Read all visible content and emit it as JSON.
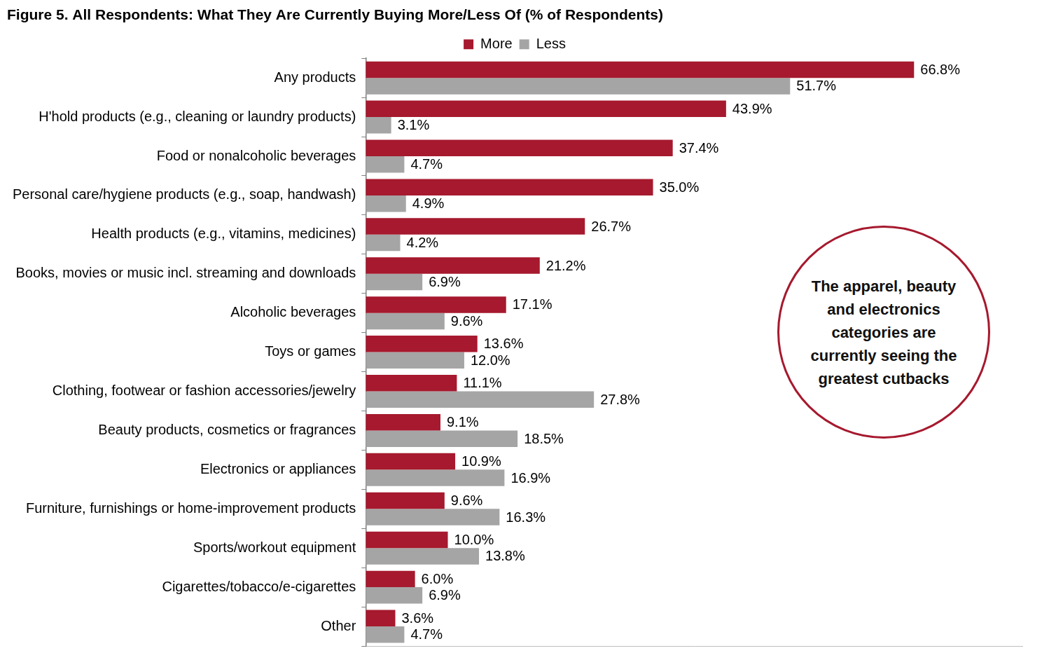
{
  "chart_data": {
    "type": "bar",
    "orientation": "horizontal",
    "title": "Figure 5. All Respondents: What They Are Currently Buying More/Less Of (% of Respondents)",
    "categories": [
      "Any products",
      "H'hold products (e.g., cleaning or laundry products)",
      "Food or nonalcoholic beverages",
      "Personal care/hygiene products (e.g., soap, handwash)",
      "Health products (e.g., vitamins, medicines)",
      "Books, movies or music incl. streaming and downloads",
      "Alcoholic beverages",
      "Toys or games",
      "Clothing, footwear or fashion accessories/jewelry",
      "Beauty products, cosmetics or fragrances",
      "Electronics or appliances",
      "Furniture, furnishings or home-improvement products",
      "Sports/workout equipment",
      "Cigarettes/tobacco/e-cigarettes",
      "Other"
    ],
    "series": [
      {
        "name": "More",
        "color": "#a6192e",
        "values": [
          66.8,
          43.9,
          37.4,
          35.0,
          26.7,
          21.2,
          17.1,
          13.6,
          11.1,
          9.1,
          10.9,
          9.6,
          10.0,
          6.0,
          3.6
        ],
        "value_labels": [
          "66.8%",
          "43.9%",
          "37.4%",
          "35.0%",
          "26.7%",
          "21.2%",
          "17.1%",
          "13.6%",
          "11.1%",
          "9.1%",
          "10.9%",
          "9.6%",
          "10.0%",
          "6.0%",
          "3.6%"
        ]
      },
      {
        "name": "Less",
        "color": "#a5a5a5",
        "values": [
          51.7,
          3.1,
          4.7,
          4.9,
          4.2,
          6.9,
          9.6,
          12.0,
          27.8,
          18.5,
          16.9,
          16.3,
          13.8,
          6.9,
          4.7
        ],
        "value_labels": [
          "51.7%",
          "3.1%",
          "4.7%",
          "4.9%",
          "4.2%",
          "6.9%",
          "9.6%",
          "12.0%",
          "27.8%",
          "18.5%",
          "16.9%",
          "16.3%",
          "13.8%",
          "6.9%",
          "4.7%"
        ]
      }
    ],
    "xlim": [
      0,
      80
    ],
    "grid": false,
    "legend": "top",
    "data_labels": true,
    "tick_labels": "y",
    "annotations": [
      "The apparel, beauty and electronics categories are currently seeing the greatest cutbacks"
    ]
  }
}
